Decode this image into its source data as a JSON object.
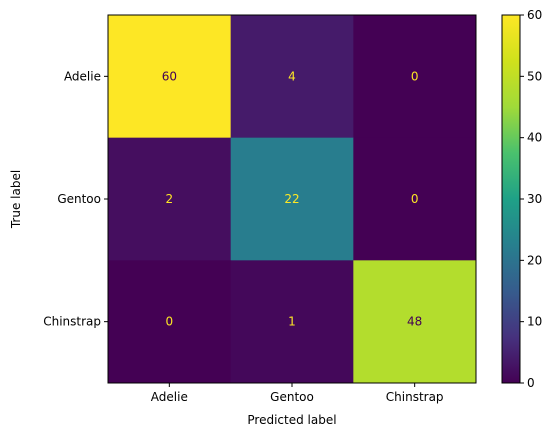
{
  "chart_data": {
    "type": "heatmap",
    "title": "",
    "xlabel": "Predicted label",
    "ylabel": "True label",
    "x_categories": [
      "Adelie",
      "Gentoo",
      "Chinstrap"
    ],
    "y_categories": [
      "Adelie",
      "Gentoo",
      "Chinstrap"
    ],
    "values": [
      [
        60,
        4,
        0
      ],
      [
        2,
        22,
        0
      ],
      [
        0,
        1,
        48
      ]
    ],
    "colorbar": {
      "range": [
        0,
        60
      ],
      "ticks": [
        "0",
        "10",
        "20",
        "30",
        "40",
        "50",
        "60"
      ]
    },
    "colormap": "viridis",
    "label_color_light": "#fde725",
    "label_color_dark": "#440154"
  }
}
